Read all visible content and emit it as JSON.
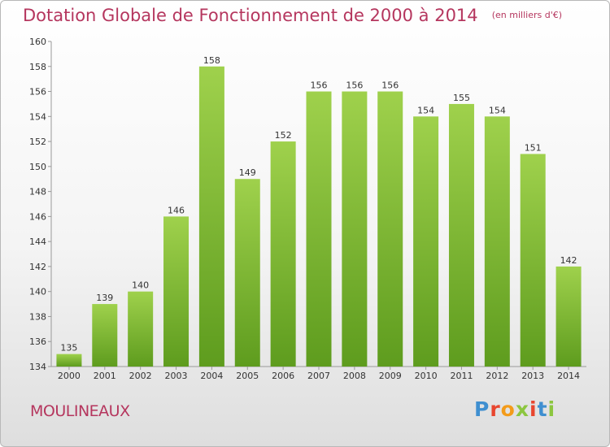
{
  "header": {
    "title": "Dotation Globale de Fonctionnement de 2000 à 2014",
    "subtitle": "(en milliers d'€)"
  },
  "footer": {
    "commune": "MOULINEAUX",
    "logo": "Proxiti",
    "logo_colors": [
      "#3f8fd0",
      "#e8462f",
      "#f39b1a",
      "#8cc63f",
      "#e8462f",
      "#3f8fd0",
      "#8cc63f"
    ]
  },
  "colors": {
    "bar_top": "#9fd14c",
    "bar_bottom": "#5e9c1e",
    "title": "#b5365e"
  },
  "chart_data": {
    "type": "bar",
    "categories": [
      "2000",
      "2001",
      "2002",
      "2003",
      "2004",
      "2005",
      "2006",
      "2007",
      "2008",
      "2009",
      "2010",
      "2011",
      "2012",
      "2013",
      "2014"
    ],
    "values": [
      135,
      139,
      140,
      146,
      158,
      149,
      152,
      156,
      156,
      156,
      154,
      155,
      154,
      151,
      142
    ],
    "title": "Dotation Globale de Fonctionnement de 2000 à 2014",
    "subtitle": "(en milliers d'€)",
    "xlabel": "",
    "ylabel": "",
    "ylim": [
      134,
      160
    ],
    "yticks": [
      134,
      136,
      138,
      140,
      142,
      144,
      146,
      148,
      150,
      152,
      154,
      156,
      158,
      160
    ],
    "grid": false,
    "data_labels": true
  }
}
